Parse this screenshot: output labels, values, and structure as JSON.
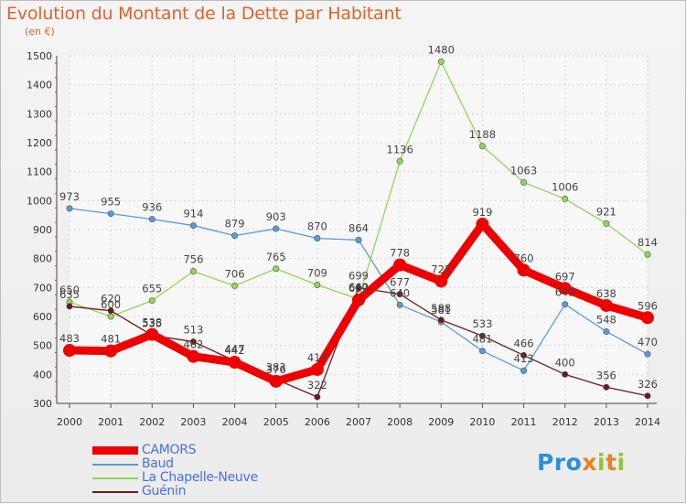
{
  "page": {
    "title": "Evolution du Montant de la Dette par Habitant",
    "unit": "(en €)"
  },
  "logo": {
    "text": "Proxiti",
    "colors": [
      "#2a8fd8",
      "#e8841c",
      "#8ac63a"
    ]
  },
  "chart_data": {
    "type": "line",
    "title": "Evolution du Montant de la Dette par Habitant",
    "subtitle": "(en €)",
    "xlabel": "",
    "ylabel": "",
    "x": [
      "2000",
      "2001",
      "2002",
      "2003",
      "2004",
      "2005",
      "2006",
      "2007",
      "2008",
      "2009",
      "2010",
      "2011",
      "2012",
      "2013",
      "2014"
    ],
    "ylim": [
      300,
      1500
    ],
    "yticks": [
      300,
      400,
      500,
      600,
      700,
      800,
      900,
      1000,
      1100,
      1200,
      1300,
      1400,
      1500
    ],
    "grid": true,
    "legend_position": "bottom-left",
    "series": [
      {
        "name": "CAMORS",
        "color": "#ee0000",
        "emphasis": true,
        "values": [
          483,
          481,
          538,
          462,
          442,
          376,
          417,
          657,
          778,
          722,
          919,
          760,
          697,
          638,
          596
        ],
        "labels": [
          "483",
          "481",
          "538",
          "462",
          "442",
          "376",
          "417",
          "657",
          "778",
          "722",
          "919",
          "760",
          "697",
          "638",
          "596"
        ]
      },
      {
        "name": "Baud",
        "color": "#5a9bd4",
        "emphasis": false,
        "values": [
          973,
          955,
          936,
          914,
          879,
          903,
          870,
          864,
          640,
          581,
          481,
          413,
          642,
          548,
          470
        ],
        "labels": [
          "973",
          "955",
          "936",
          "914",
          "879",
          "903",
          "870",
          "864",
          "640",
          "581",
          "481",
          "413",
          "642",
          "548",
          "470"
        ]
      },
      {
        "name": "La Chapelle-Neuve",
        "color": "#8fd65a",
        "emphasis": false,
        "values": [
          650,
          600,
          655,
          756,
          706,
          765,
          709,
          660,
          1136,
          1480,
          1188,
          1063,
          1006,
          921,
          814
        ],
        "labels": [
          "650",
          "600",
          "655",
          "756",
          "706",
          "765",
          "709",
          "660",
          "1136",
          "1480",
          "1188",
          "1063",
          "1006",
          "921",
          "814"
        ]
      },
      {
        "name": "Guénin",
        "color": "#6b1a1a",
        "emphasis": false,
        "values": [
          635,
          620,
          535,
          513,
          447,
          383,
          322,
          699,
          677,
          588,
          533,
          466,
          400,
          356,
          326
        ],
        "labels": [
          "635",
          "620",
          "535",
          "513",
          "447",
          "383",
          "322",
          "699",
          "677",
          "588",
          "533",
          "466",
          "400",
          "356",
          "326"
        ]
      }
    ]
  }
}
